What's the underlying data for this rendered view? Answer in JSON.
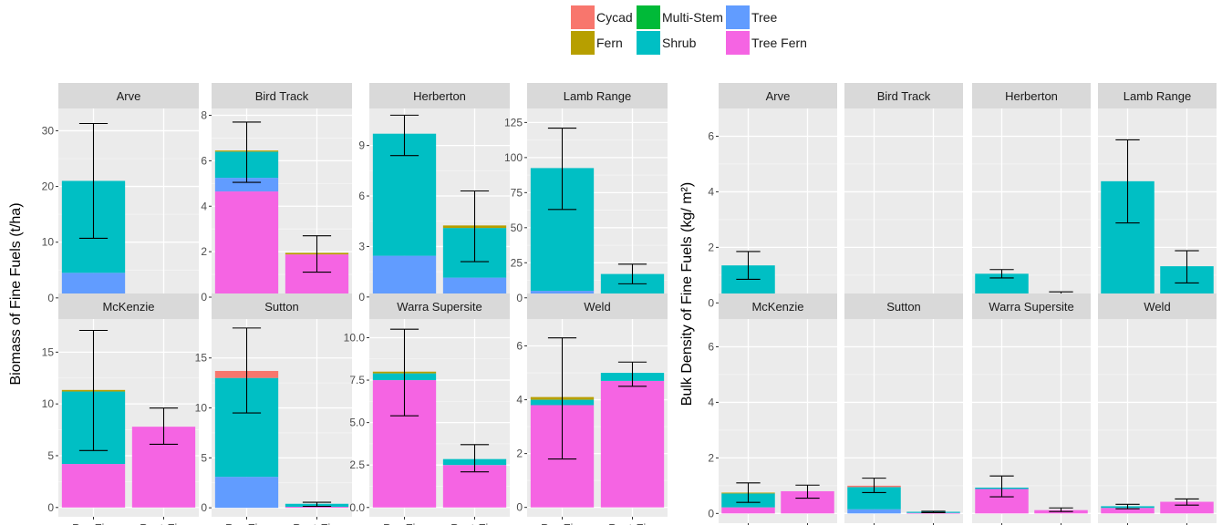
{
  "legend": {
    "items": [
      {
        "label": "Cycad",
        "color": "#F8766D"
      },
      {
        "label": "Multi-Stem",
        "color": "#00BA38"
      },
      {
        "label": "Tree",
        "color": "#619CFF"
      },
      {
        "label": "Fern",
        "color": "#B79F00"
      },
      {
        "label": "Shrub",
        "color": "#00BFC4"
      },
      {
        "label": "Tree Fern",
        "color": "#F564E3"
      }
    ]
  },
  "chart_data": [
    {
      "type": "bar",
      "stacked": true,
      "ylabel": "Biomass of Fine Fuels (t/ha)",
      "facet_scales": "free_y",
      "categories": [
        "Pre-Fire",
        "Post-Fire"
      ],
      "stack_order": [
        "Tree Fern",
        "Tree",
        "Shrub",
        "Multi-Stem",
        "Fern",
        "Cycad"
      ],
      "panels": [
        {
          "site": "Arve",
          "ylim": [
            -1.5,
            34
          ],
          "ticks": [
            0,
            10,
            20,
            30
          ],
          "bars": [
            {
              "Tree": 4.5,
              "Shrub": 16.5
            },
            {
              "Shrub": 0.05
            }
          ],
          "errorbars": [
            [
              10.7,
              31.3
            ],
            [
              0,
              0
            ]
          ]
        },
        {
          "site": "Bird Track",
          "ylim": [
            -0.4,
            8.3
          ],
          "ticks": [
            0,
            2,
            4,
            6,
            8
          ],
          "bars": [
            {
              "Tree Fern": 4.65,
              "Tree": 0.6,
              "Shrub": 1.15,
              "Fern": 0.05
            },
            {
              "Tree Fern": 1.88,
              "Fern": 0.07
            }
          ],
          "errorbars": [
            [
              5.05,
              7.7
            ],
            [
              1.1,
              2.7
            ]
          ]
        },
        {
          "site": "Herberton",
          "ylim": [
            -0.55,
            11.2
          ],
          "ticks": [
            0,
            3,
            6,
            9
          ],
          "bars": [
            {
              "Tree": 2.45,
              "Shrub": 7.25
            },
            {
              "Tree": 1.15,
              "Shrub": 2.95,
              "Fern": 0.15
            }
          ],
          "errorbars": [
            [
              8.4,
              10.8
            ],
            [
              2.1,
              6.3
            ]
          ]
        },
        {
          "site": "Lamb Range",
          "ylim": [
            -6,
            135
          ],
          "ticks": [
            0,
            25,
            50,
            75,
            100,
            125
          ],
          "bars": [
            {
              "Tree": 5,
              "Shrub": 87.5
            },
            {
              "Shrub": 17
            }
          ],
          "errorbars": [
            [
              63,
              121
            ],
            [
              10,
              24
            ]
          ]
        },
        {
          "site": "McKenzie",
          "ylim": [
            -0.9,
            18.2
          ],
          "ticks": [
            0,
            5,
            10,
            15
          ],
          "bars": [
            {
              "Tree Fern": 4.2,
              "Shrub": 7.0,
              "Fern": 0.15
            },
            {
              "Tree Fern": 7.8
            }
          ],
          "errorbars": [
            [
              5.5,
              17.1
            ],
            [
              6.1,
              9.6
            ]
          ]
        },
        {
          "site": "Sutton",
          "ylim": [
            -0.9,
            18.9
          ],
          "ticks": [
            0,
            5,
            10,
            15
          ],
          "bars": [
            {
              "Tree": 3.1,
              "Shrub": 9.9,
              "Cycad": 0.7
            },
            {
              "Tree Fern": 0.1,
              "Shrub": 0.3
            }
          ],
          "errorbars": [
            [
              9.5,
              18
            ],
            [
              0.15,
              0.55
            ]
          ]
        },
        {
          "site": "Warra Supersite",
          "ylim": [
            -0.55,
            11.1
          ],
          "ticks": [
            0.0,
            2.5,
            5.0,
            7.5,
            10.0
          ],
          "bars": [
            {
              "Tree Fern": 7.5,
              "Shrub": 0.4,
              "Fern": 0.1
            },
            {
              "Tree Fern": 2.5,
              "Shrub": 0.35
            }
          ],
          "errorbars": [
            [
              5.4,
              10.5
            ],
            [
              2.1,
              3.7
            ]
          ]
        },
        {
          "site": "Weld",
          "ylim": [
            -0.35,
            7.0
          ],
          "ticks": [
            0,
            2,
            4,
            6
          ],
          "bars": [
            {
              "Tree Fern": 3.8,
              "Shrub": 0.2,
              "Fern": 0.1
            },
            {
              "Tree Fern": 4.7,
              "Shrub": 0.3
            }
          ],
          "errorbars": [
            [
              1.8,
              6.3
            ],
            [
              4.5,
              5.4
            ]
          ]
        }
      ]
    },
    {
      "type": "bar",
      "stacked": true,
      "ylabel": "Bulk Density of Fine Fuels (kg/ m²)",
      "facet_scales": "fixed",
      "categories": [
        "Pre-Fire",
        "Post-Fire"
      ],
      "stack_order": [
        "Tree Fern",
        "Tree",
        "Shrub",
        "Multi-Stem",
        "Fern",
        "Cycad"
      ],
      "ylim": [
        -0.35,
        7.0
      ],
      "ticks": [
        0,
        2,
        4,
        6
      ],
      "panels": [
        {
          "site": "Arve",
          "bars": [
            {
              "Tree": 0.08,
              "Shrub": 1.27
            },
            {
              "Shrub": 0.01
            }
          ],
          "errorbars": [
            [
              0.85,
              1.85
            ],
            [
              0,
              0
            ]
          ]
        },
        {
          "site": "Bird Track",
          "bars": [
            {
              "Tree Fern": 0.18,
              "Tree": 0.06,
              "Shrub": 0.03
            },
            {
              "Tree Fern": 0.08
            }
          ],
          "errorbars": [
            [
              0.2,
              0.3
            ],
            [
              0.05,
              0.12
            ]
          ]
        },
        {
          "site": "Herberton",
          "bars": [
            {
              "Tree": 0.05,
              "Shrub": 1.0
            },
            {
              "Tree": 0.08,
              "Shrub": 0.14,
              "Fern": 0.03
            }
          ],
          "errorbars": [
            [
              0.9,
              1.2
            ],
            [
              0.1,
              0.4
            ]
          ]
        },
        {
          "site": "Lamb Range",
          "bars": [
            {
              "Tree": 0.18,
              "Shrub": 4.2
            },
            {
              "Shrub": 1.32
            }
          ],
          "errorbars": [
            [
              2.88,
              5.87
            ],
            [
              0.72,
              1.88
            ]
          ]
        },
        {
          "site": "McKenzie",
          "bars": [
            {
              "Tree Fern": 0.22,
              "Shrub": 0.5,
              "Fern": 0.03
            },
            {
              "Tree Fern": 0.8
            }
          ],
          "errorbars": [
            [
              0.4,
              1.1
            ],
            [
              0.55,
              1.02
            ]
          ]
        },
        {
          "site": "Sutton",
          "bars": [
            {
              "Tree": 0.15,
              "Shrub": 0.8,
              "Cycad": 0.05
            },
            {
              "Tree Fern": 0.02,
              "Shrub": 0.04
            }
          ],
          "errorbars": [
            [
              0.75,
              1.27
            ],
            [
              0.03,
              0.08
            ]
          ]
        },
        {
          "site": "Warra Supersite",
          "bars": [
            {
              "Tree Fern": 0.88,
              "Shrub": 0.05
            },
            {
              "Tree Fern": 0.12
            }
          ],
          "errorbars": [
            [
              0.6,
              1.35
            ],
            [
              0.07,
              0.2
            ]
          ]
        },
        {
          "site": "Weld",
          "bars": [
            {
              "Tree Fern": 0.2,
              "Shrub": 0.06
            },
            {
              "Tree Fern": 0.42
            }
          ],
          "errorbars": [
            [
              0.17,
              0.33
            ],
            [
              0.3,
              0.52
            ]
          ]
        }
      ]
    }
  ]
}
